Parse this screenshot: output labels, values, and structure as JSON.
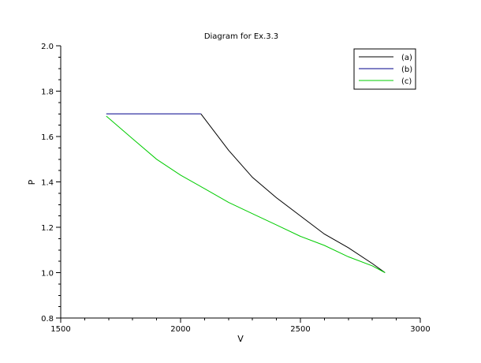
{
  "chart_data": {
    "type": "line",
    "title": "Diagram for Ex.3.3",
    "xlabel": "V",
    "ylabel": "P",
    "xlim": [
      1500,
      3000
    ],
    "ylim": [
      0.8,
      2.0
    ],
    "xticks": [
      1500,
      2000,
      2500,
      3000
    ],
    "xtick_labels": [
      "1500",
      "2000",
      "2500",
      "3000"
    ],
    "yticks": [
      0.8,
      1.0,
      1.2,
      1.4,
      1.6,
      1.8,
      2.0
    ],
    "ytick_labels": [
      "0.8",
      "1.0",
      "1.2",
      "1.4",
      "1.6",
      "1.8",
      "2.0"
    ],
    "grid": false,
    "legend_position": "top-right",
    "series": [
      {
        "name": "(a)",
        "color": "#000000",
        "x": [
          2085,
          2200,
          2300,
          2400,
          2500,
          2600,
          2700,
          2800,
          2853
        ],
        "y": [
          1.7,
          1.54,
          1.42,
          1.33,
          1.25,
          1.17,
          1.11,
          1.04,
          1.0
        ]
      },
      {
        "name": "(b)",
        "color": "#00008b",
        "x": [
          1690,
          2085
        ],
        "y": [
          1.7,
          1.7
        ]
      },
      {
        "name": "(c)",
        "color": "#00cc00",
        "x": [
          1690,
          1800,
          1900,
          2000,
          2100,
          2200,
          2300,
          2400,
          2500,
          2600,
          2700,
          2800,
          2853
        ],
        "y": [
          1.69,
          1.59,
          1.5,
          1.43,
          1.37,
          1.31,
          1.26,
          1.21,
          1.16,
          1.12,
          1.07,
          1.03,
          1.0
        ]
      }
    ]
  }
}
